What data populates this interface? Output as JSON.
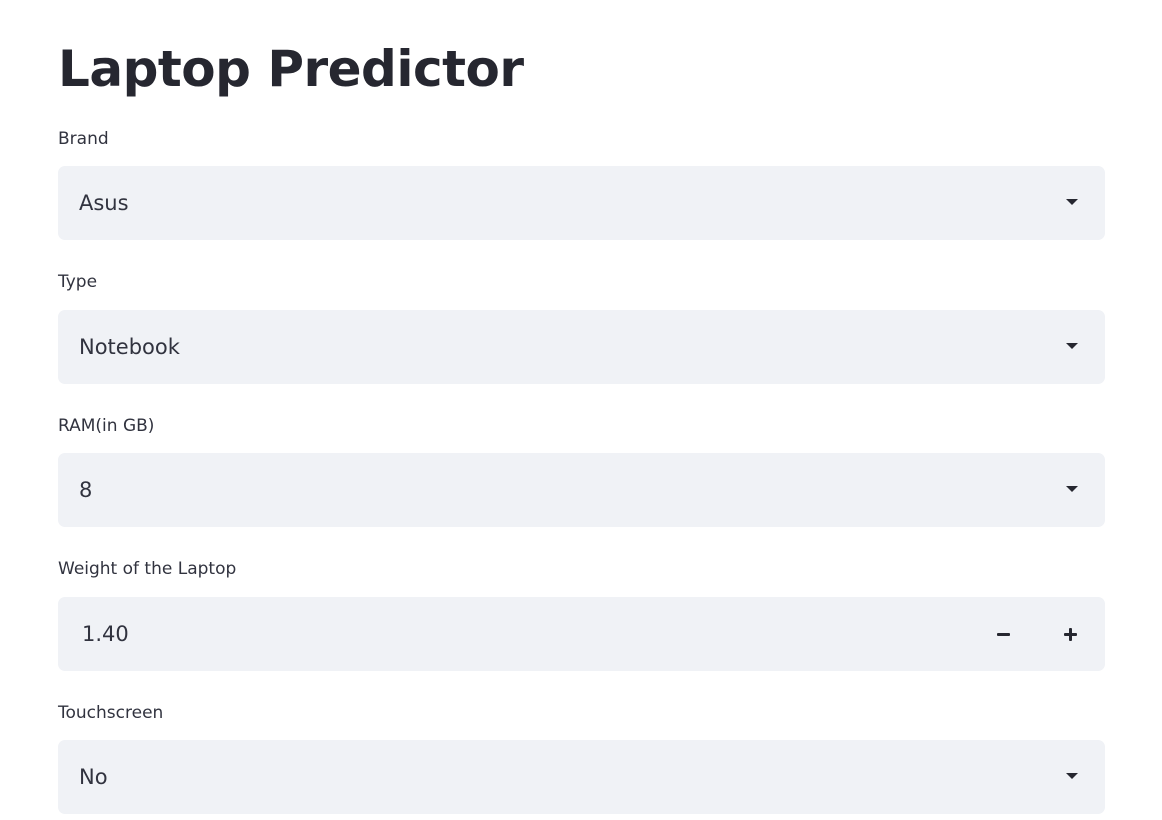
{
  "page": {
    "title": "Laptop Predictor"
  },
  "fields": {
    "brand": {
      "label": "Brand",
      "value": "Asus"
    },
    "type": {
      "label": "Type",
      "value": "Notebook"
    },
    "ram": {
      "label": "RAM(in GB)",
      "value": "8"
    },
    "weight": {
      "label": "Weight of the Laptop",
      "value": "1.40"
    },
    "touchscreen": {
      "label": "Touchscreen",
      "value": "No"
    }
  },
  "icons": {
    "select_caret": "chevron-down-icon",
    "decrement": "minus-icon",
    "increment": "plus-icon"
  },
  "colors": {
    "input_background": "#f0f2f6",
    "title_text": "#262730",
    "body_text": "#31333f"
  }
}
